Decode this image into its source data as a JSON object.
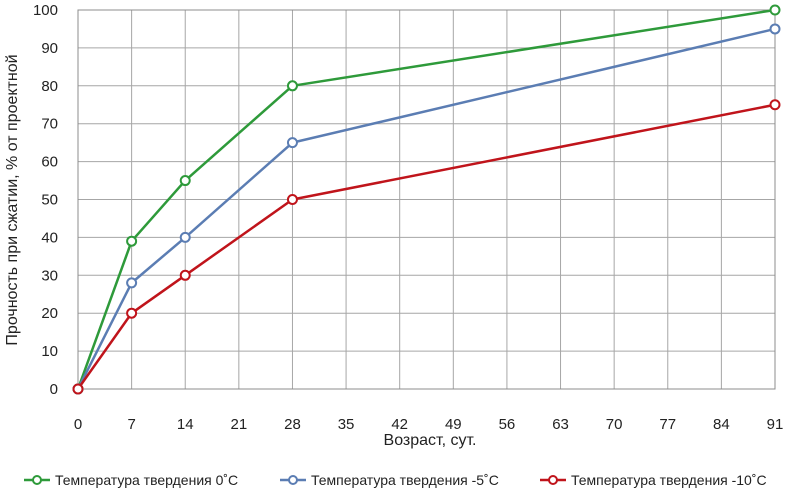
{
  "chart_data": {
    "type": "line",
    "xlabel": "Возраст, сут.",
    "ylabel": "Прочность при сжатии, % от проектной",
    "xlim": [
      0,
      91
    ],
    "ylim": [
      0,
      100
    ],
    "x_ticks": [
      0,
      7,
      14,
      21,
      28,
      35,
      42,
      49,
      56,
      63,
      70,
      77,
      84,
      91
    ],
    "y_ticks": [
      0,
      10,
      20,
      30,
      40,
      50,
      60,
      70,
      80,
      90,
      100
    ],
    "grid": true,
    "legend_position": "bottom",
    "series": [
      {
        "name": "Температура твердения 0˚С",
        "color": "#2e9a3a",
        "x": [
          0,
          7,
          14,
          28,
          91
        ],
        "y": [
          0,
          39,
          55,
          80,
          100
        ]
      },
      {
        "name": "Температура твердения -5˚С",
        "color": "#5b7db3",
        "x": [
          0,
          7,
          14,
          28,
          91
        ],
        "y": [
          0,
          28,
          40,
          65,
          95
        ]
      },
      {
        "name": "Температура твердения -10˚С",
        "color": "#c0141b",
        "x": [
          0,
          7,
          14,
          28,
          91
        ],
        "y": [
          0,
          20,
          30,
          50,
          75
        ]
      }
    ]
  }
}
